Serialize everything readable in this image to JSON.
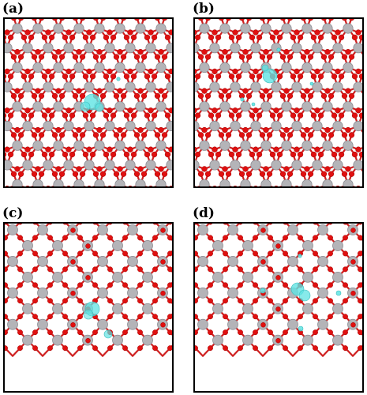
{
  "figure": {
    "panels": [
      {
        "label": "(a)"
      },
      {
        "label": "(b)"
      },
      {
        "label": "(c)"
      },
      {
        "label": "(d)"
      }
    ]
  },
  "colors": {
    "metal_atom": "#b4b4b8",
    "oxygen_atom": "#e01010",
    "bond": "#cf2020",
    "isosurface": "#5fe3e3",
    "frame": "#000000"
  }
}
